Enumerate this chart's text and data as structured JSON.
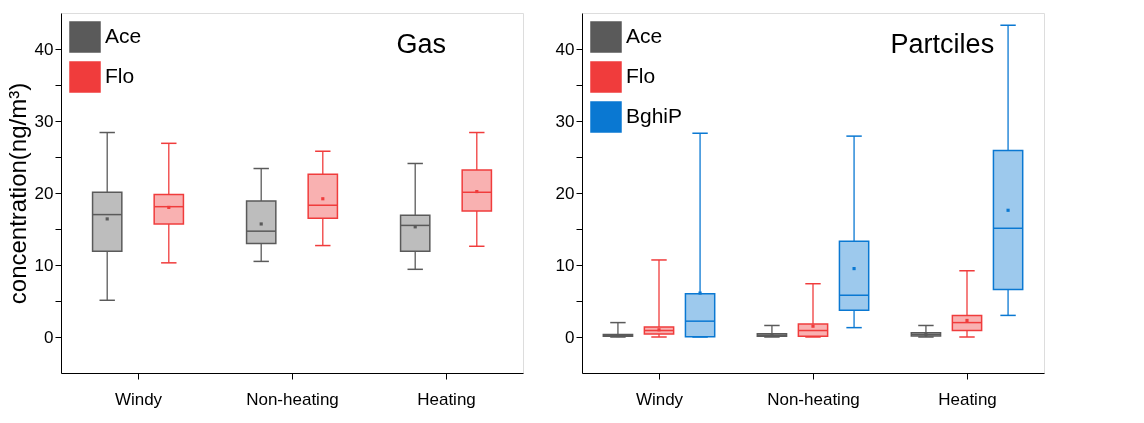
{
  "chart_data": [
    {
      "type": "box",
      "title": "Gas",
      "ylabel": "concentration(ng/m³)",
      "categories": [
        "Windy",
        "Non-heating",
        "Heating"
      ],
      "ylim": [
        -5,
        45
      ],
      "yticks": [
        0,
        {
          "value": 5,
          "label": null
        },
        10,
        {
          "value": 15,
          "label": null
        },
        20,
        {
          "value": 25,
          "label": null
        },
        30,
        {
          "value": 35,
          "label": null
        },
        40
      ],
      "legend": "top left",
      "grid": false,
      "series": [
        {
          "name": "Ace",
          "color": "#5a5a5a",
          "boxes": [
            {
              "low": 5.1,
              "q1": 11.9,
              "median": 17.0,
              "q3": 20.1,
              "high": 28.4,
              "mean": 16.4
            },
            {
              "low": 10.5,
              "q1": 13.0,
              "median": 14.7,
              "q3": 18.9,
              "high": 23.4,
              "mean": 15.7
            },
            {
              "low": 9.4,
              "q1": 11.9,
              "median": 15.5,
              "q3": 16.9,
              "high": 24.1,
              "mean": 15.3
            }
          ]
        },
        {
          "name": "Flo",
          "color": "#f03c3c",
          "boxes": [
            {
              "low": 10.3,
              "q1": 15.7,
              "median": 18.1,
              "q3": 19.8,
              "high": 26.9,
              "mean": 18.0
            },
            {
              "low": 12.7,
              "q1": 16.5,
              "median": 18.3,
              "q3": 22.6,
              "high": 25.8,
              "mean": 19.2
            },
            {
              "low": 12.6,
              "q1": 17.5,
              "median": 20.1,
              "q3": 23.2,
              "high": 28.4,
              "mean": 20.2
            }
          ]
        }
      ]
    },
    {
      "type": "box",
      "title": "Partciles",
      "categories": [
        "Windy",
        "Non-heating",
        "Heating"
      ],
      "ylim": [
        -5,
        45
      ],
      "yticks": [
        0,
        {
          "value": 5,
          "label": null
        },
        10,
        {
          "value": 15,
          "label": null
        },
        20,
        {
          "value": 25,
          "label": null
        },
        30,
        {
          "value": 35,
          "label": null
        },
        40
      ],
      "legend": "top left",
      "grid": false,
      "series": [
        {
          "name": "Ace",
          "color": "#5a5a5a",
          "boxes": [
            {
              "low": 0,
              "q1": 0.1,
              "median": 0.25,
              "q3": 0.35,
              "high": 2.0,
              "mean": 0.2
            },
            {
              "low": 0,
              "q1": 0.1,
              "median": 0.25,
              "q3": 0.45,
              "high": 1.6,
              "mean": 0.3
            },
            {
              "low": 0,
              "q1": 0.15,
              "median": 0.35,
              "q3": 0.6,
              "high": 1.6,
              "mean": 0.35
            }
          ]
        },
        {
          "name": "Flo",
          "color": "#f03c3c",
          "boxes": [
            {
              "low": 0,
              "q1": 0.4,
              "median": 0.9,
              "q3": 1.4,
              "high": 10.7,
              "mean": 1.0
            },
            {
              "low": 0,
              "q1": 0.1,
              "median": 0.9,
              "q3": 1.8,
              "high": 7.4,
              "mean": 1.5
            },
            {
              "low": 0,
              "q1": 0.9,
              "median": 2.0,
              "q3": 3.0,
              "high": 9.2,
              "mean": 2.3
            }
          ]
        },
        {
          "name": "BghiP",
          "color": "#0a78d2",
          "boxes": [
            {
              "low": 0,
              "q1": 0.05,
              "median": 2.2,
              "q3": 6.0,
              "high": 28.3,
              "mean": 6.1
            },
            {
              "low": 1.3,
              "q1": 3.7,
              "median": 5.8,
              "q3": 13.3,
              "high": 27.9,
              "mean": 9.5
            },
            {
              "low": 3.0,
              "q1": 6.6,
              "median": 15.1,
              "q3": 25.9,
              "high": 43.3,
              "mean": 17.6
            }
          ]
        }
      ]
    }
  ]
}
